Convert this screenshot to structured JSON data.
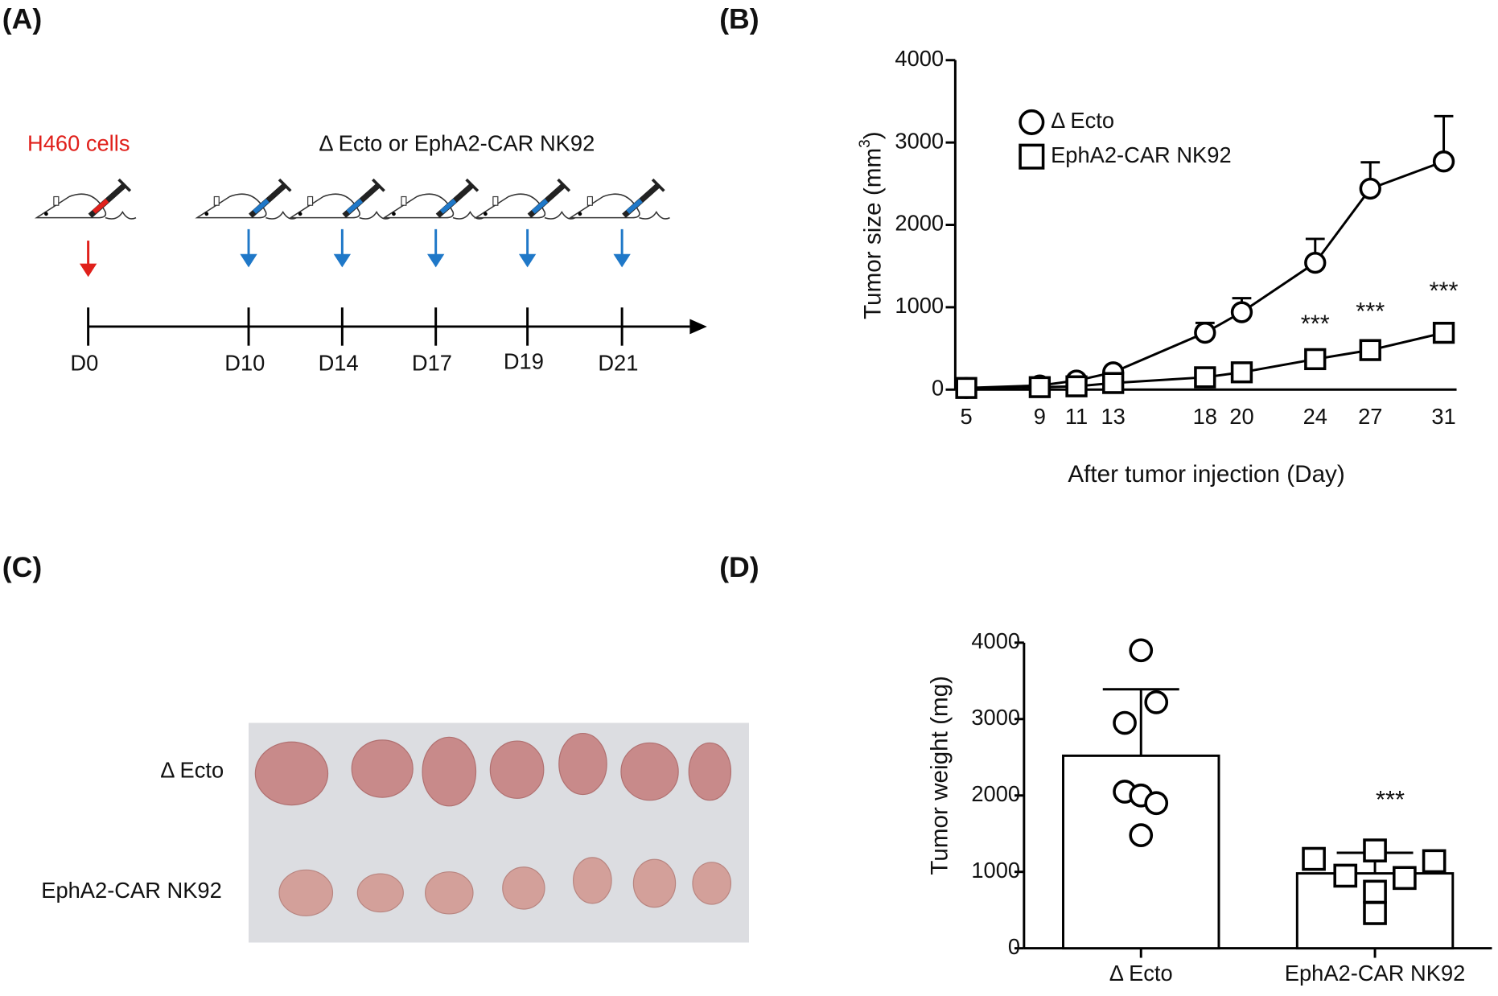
{
  "panels": [
    "(A)",
    "(B)",
    "(C)",
    "(D)"
  ],
  "timeline": {
    "cells_label": "H460 cells",
    "treatment_label": "Δ Ecto or EphA2-CAR NK92",
    "days": [
      "D0",
      "D10",
      "D14",
      "D17",
      "D19",
      "D21"
    ]
  },
  "photo": {
    "row_labels": [
      "Δ Ecto",
      "EphA2-CAR NK92"
    ]
  },
  "chart_data": [
    {
      "type": "line",
      "xlabel": "After tumor injection (Day)",
      "ylabel_parts": [
        "Tumor size (mm",
        "3",
        ")"
      ],
      "x": [
        5,
        9,
        11,
        13,
        18,
        20,
        24,
        27,
        31
      ],
      "xlim": [
        4.4,
        31.7
      ],
      "xticks": [
        5,
        9,
        11,
        13,
        18,
        20,
        24,
        27,
        31
      ],
      "ylim": [
        0,
        4000
      ],
      "yticks": [
        0,
        1000,
        2000,
        3000,
        4000
      ],
      "series": [
        {
          "name": "Δ Ecto",
          "marker": "circle",
          "color": "#000000",
          "values": [
            20,
            50,
            110,
            210,
            690,
            940,
            1540,
            2440,
            2770
          ],
          "errors": [
            null,
            null,
            null,
            null,
            120,
            170,
            290,
            320,
            550
          ]
        },
        {
          "name": "EphA2-CAR NK92",
          "marker": "square",
          "color": "#000000",
          "values": [
            20,
            30,
            40,
            80,
            150,
            210,
            370,
            480,
            690
          ]
        }
      ],
      "annotations": [
        {
          "x": 24,
          "y": 780,
          "text": "***"
        },
        {
          "x": 27,
          "y": 930,
          "text": "***"
        },
        {
          "x": 31,
          "y": 1180,
          "text": "***"
        }
      ]
    },
    {
      "type": "bar",
      "ylabel": "Tumor weight (mg)",
      "categories": [
        "Δ Ecto",
        "EphA2-CAR NK92"
      ],
      "values": [
        2520,
        980
      ],
      "errors": [
        870,
        270
      ],
      "color": "#ffffff",
      "points": [
        [
          3900,
          3220,
          2950,
          2050,
          2000,
          1900,
          1480
        ],
        [
          1170,
          1280,
          1140,
          950,
          920,
          740,
          460
        ]
      ],
      "markers": [
        "circle",
        "square"
      ],
      "ylim": [
        0,
        4000
      ],
      "yticks": [
        0,
        1000,
        2000,
        3000,
        4000
      ],
      "annotations": [
        {
          "category": 1,
          "y": 2050,
          "text": "***"
        }
      ]
    }
  ]
}
